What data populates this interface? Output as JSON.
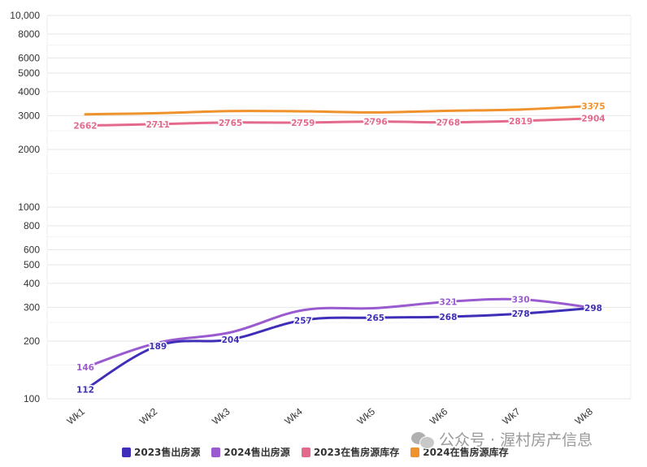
{
  "chart_data": {
    "type": "line",
    "y_scale": "log",
    "ylim": [
      100,
      10000
    ],
    "y_ticks": [
      {
        "value": 100,
        "label": "100"
      },
      {
        "value": 200,
        "label": "200"
      },
      {
        "value": 300,
        "label": "300"
      },
      {
        "value": 400,
        "label": "400"
      },
      {
        "value": 500,
        "label": "500"
      },
      {
        "value": 600,
        "label": "600"
      },
      {
        "value": 800,
        "label": "800"
      },
      {
        "value": 1000,
        "label": "1000"
      },
      {
        "value": 2000,
        "label": "2000"
      },
      {
        "value": 3000,
        "label": "3000"
      },
      {
        "value": 4000,
        "label": "4000"
      },
      {
        "value": 5000,
        "label": "5000"
      },
      {
        "value": 6000,
        "label": "6000"
      },
      {
        "value": 8000,
        "label": "8000"
      },
      {
        "value": 10000,
        "label": "10,000"
      }
    ],
    "categories": [
      "Wk1",
      "Wk2",
      "Wk3",
      "Wk4",
      "Wk5",
      "Wk6",
      "Wk7",
      "Wk8"
    ],
    "grid": true,
    "legend_position": "bottom",
    "series": [
      {
        "name": "2023售出房源",
        "color": "#3f2fb8",
        "values": [
          112,
          189,
          204,
          257,
          265,
          268,
          278,
          298
        ],
        "labels": [
          "112",
          "189",
          "204",
          "257",
          "265",
          "268",
          "278",
          "298"
        ]
      },
      {
        "name": "2024售出房源",
        "color": "#9a5bd1",
        "values": [
          146,
          196,
          222,
          290,
          297,
          321,
          330,
          298
        ],
        "labels": [
          "146",
          "",
          "",
          "",
          "",
          "321",
          "330",
          ""
        ]
      },
      {
        "name": "2023在售房源库存",
        "color": "#e36a8c",
        "values": [
          2662,
          2711,
          2765,
          2759,
          2796,
          2768,
          2819,
          2904
        ],
        "labels": [
          "2662",
          "2711",
          "2765",
          "2759",
          "2796",
          "2768",
          "2819",
          "2904"
        ]
      },
      {
        "name": "2024在售房源库存",
        "color": "#f0922b",
        "values": [
          3050,
          3090,
          3170,
          3160,
          3120,
          3180,
          3230,
          3375
        ],
        "labels": [
          "",
          "",
          "",
          "",
          "",
          "",
          "",
          "3375"
        ]
      }
    ]
  },
  "watermark": {
    "icon": "wechat-icon",
    "text": "公众号 · 渥村房产信息"
  }
}
